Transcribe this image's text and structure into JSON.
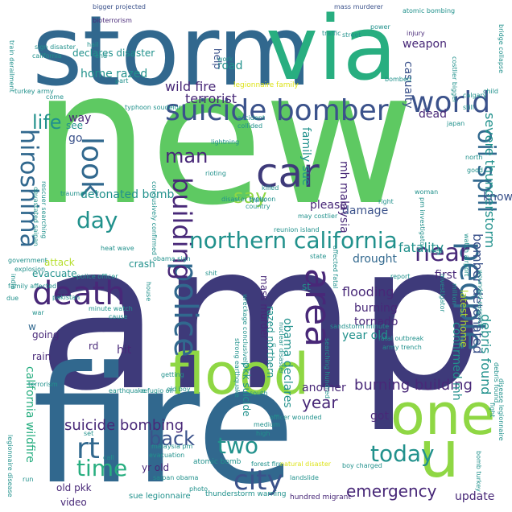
{
  "colors": {
    "dark_navy": "#3e3a7a",
    "indigo": "#443a83",
    "blue": "#31688e",
    "steel": "#3b528b",
    "teal": "#21918c",
    "teal_green": "#28ae80",
    "green": "#5ec962",
    "lime": "#8fd744",
    "yellow_green": "#b5de2b",
    "yellow": "#dde318",
    "purple": "#482878",
    "deep": "#440154"
  },
  "words": [
    {
      "text": "amp",
      "color": "dark_navy"
    },
    {
      "text": "new",
      "color": "green"
    },
    {
      "text": "fire",
      "color": "blue"
    },
    {
      "text": "storm",
      "color": "blue"
    },
    {
      "text": "via",
      "color": "teal_green"
    },
    {
      "text": "one",
      "color": "lime"
    },
    {
      "text": "u",
      "color": "lime"
    },
    {
      "text": "flood",
      "color": "lime"
    },
    {
      "text": "car",
      "color": "dark_navy"
    },
    {
      "text": "suicide bomber",
      "color": "steel"
    },
    {
      "text": "world",
      "color": "steel"
    },
    {
      "text": "life",
      "color": "teal"
    },
    {
      "text": "death",
      "color": "purple"
    },
    {
      "text": "area",
      "color": "purple"
    },
    {
      "text": "people",
      "color": "blue"
    },
    {
      "text": "police",
      "color": "blue"
    },
    {
      "text": "building",
      "color": "purple"
    },
    {
      "text": "look",
      "color": "blue"
    },
    {
      "text": "hiroshima",
      "color": "blue"
    },
    {
      "text": "northern california",
      "color": "teal"
    },
    {
      "text": "near",
      "color": "purple"
    },
    {
      "text": "day",
      "color": "teal"
    },
    {
      "text": "man",
      "color": "purple"
    },
    {
      "text": "say",
      "color": "lime"
    },
    {
      "text": "oil spill",
      "color": "blue"
    },
    {
      "text": "time",
      "color": "teal_green"
    },
    {
      "text": "rt",
      "color": "blue"
    },
    {
      "text": "back",
      "color": "steel"
    },
    {
      "text": "two",
      "color": "teal"
    },
    {
      "text": "city",
      "color": "steel"
    },
    {
      "text": "today",
      "color": "teal"
    },
    {
      "text": "emergency",
      "color": "purple"
    },
    {
      "text": "year",
      "color": "purple"
    },
    {
      "text": "suicide bombing",
      "color": "purple"
    },
    {
      "text": "burning building",
      "color": "purple"
    },
    {
      "text": "wild fire",
      "color": "purple"
    },
    {
      "text": "terrorist",
      "color": "purple"
    },
    {
      "text": "road",
      "color": "teal"
    },
    {
      "text": "home razed",
      "color": "teal"
    },
    {
      "text": "detonated bomb",
      "color": "teal"
    },
    {
      "text": "way",
      "color": "purple"
    },
    {
      "text": "go",
      "color": "steel"
    },
    {
      "text": "see",
      "color": "teal"
    },
    {
      "text": "declares disaster",
      "color": "teal"
    },
    {
      "text": "weapon",
      "color": "purple"
    },
    {
      "text": "casualty",
      "color": "steel"
    },
    {
      "text": "dead",
      "color": "purple"
    },
    {
      "text": "fatality",
      "color": "teal"
    },
    {
      "text": "damage",
      "color": "steel"
    },
    {
      "text": "drought",
      "color": "blue"
    },
    {
      "text": "flooding",
      "color": "purple"
    },
    {
      "text": "burning",
      "color": "purple"
    },
    {
      "text": "tornado",
      "color": "purple"
    },
    {
      "text": "year old",
      "color": "teal"
    },
    {
      "text": "obama declares",
      "color": "teal"
    },
    {
      "text": "another",
      "color": "purple"
    },
    {
      "text": "got",
      "color": "purple"
    },
    {
      "text": "first",
      "color": "purple"
    },
    {
      "text": "severe thunderstorm",
      "color": "teal"
    },
    {
      "text": "bomber detonated",
      "color": "steel"
    },
    {
      "text": "confirmed mh",
      "color": "teal"
    },
    {
      "text": "debris found",
      "color": "teal"
    },
    {
      "text": "update",
      "color": "purple"
    },
    {
      "text": "mh malaysia",
      "color": "purple"
    },
    {
      "text": "family sue",
      "color": "teal"
    },
    {
      "text": "please",
      "color": "purple"
    },
    {
      "text": "know",
      "color": "steel"
    },
    {
      "text": "attack",
      "color": "yellow_green"
    },
    {
      "text": "evacuate",
      "color": "teal"
    },
    {
      "text": "crash",
      "color": "teal"
    },
    {
      "text": "going",
      "color": "purple"
    },
    {
      "text": "rain",
      "color": "purple"
    },
    {
      "text": "california wildfire",
      "color": "teal_green"
    },
    {
      "text": "pkk suicide",
      "color": "teal"
    },
    {
      "text": "hit",
      "color": "purple"
    },
    {
      "text": "rd",
      "color": "purple"
    },
    {
      "text": "w",
      "color": "blue"
    },
    {
      "text": "yr old",
      "color": "purple"
    },
    {
      "text": "old pkk",
      "color": "purple"
    },
    {
      "text": "video",
      "color": "purple"
    },
    {
      "text": "razed northern",
      "color": "teal"
    },
    {
      "text": "mass murder",
      "color": "purple"
    },
    {
      "text": "st",
      "color": "teal"
    },
    {
      "text": "latest home",
      "color": "yellow_green"
    },
    {
      "text": "help",
      "color": "steel"
    },
    {
      "text": "legionnaire family",
      "color": "yellow"
    },
    {
      "text": "sue legionnaire",
      "color": "teal"
    },
    {
      "text": "atomic bomb",
      "color": "teal"
    },
    {
      "text": "thunderstorm warning",
      "color": "teal"
    },
    {
      "text": "hundred migrant",
      "color": "purple"
    },
    {
      "text": "boy charged",
      "color": "teal"
    },
    {
      "text": "bigger projected",
      "color": "steel"
    },
    {
      "text": "mass murderer",
      "color": "steel"
    },
    {
      "text": "atomic bombing",
      "color": "teal"
    },
    {
      "text": "bioterrorism",
      "color": "purple"
    },
    {
      "text": "sign disaster",
      "color": "teal"
    },
    {
      "text": "california",
      "color": "teal"
    },
    {
      "text": "hail",
      "color": "teal"
    },
    {
      "text": "end",
      "color": "teal"
    },
    {
      "text": "traffic",
      "color": "teal"
    },
    {
      "text": "power",
      "color": "teal"
    },
    {
      "text": "injury",
      "color": "purple"
    },
    {
      "text": "street",
      "color": "teal"
    },
    {
      "text": "bridge collapse",
      "color": "teal"
    },
    {
      "text": "train derailment",
      "color": "teal"
    },
    {
      "text": "turkey army",
      "color": "teal"
    },
    {
      "text": "typhoon soudelor",
      "color": "teal"
    },
    {
      "text": "accident",
      "color": "teal"
    },
    {
      "text": "collided",
      "color": "teal"
    },
    {
      "text": "lightning",
      "color": "teal"
    },
    {
      "text": "rioting",
      "color": "teal"
    },
    {
      "text": "killed",
      "color": "teal"
    },
    {
      "text": "disaster typhoon",
      "color": "teal"
    },
    {
      "text": "country",
      "color": "teal"
    },
    {
      "text": "reunion island",
      "color": "teal"
    },
    {
      "text": "may costlier",
      "color": "teal"
    },
    {
      "text": "devastated saipan",
      "color": "teal"
    },
    {
      "text": "rescuer searching",
      "color": "teal"
    },
    {
      "text": "trauma",
      "color": "teal"
    },
    {
      "text": "heat wave",
      "color": "teal"
    },
    {
      "text": "government",
      "color": "teal"
    },
    {
      "text": "explosion",
      "color": "teal"
    },
    {
      "text": "family affected",
      "color": "teal"
    },
    {
      "text": "pakistan",
      "color": "teal"
    },
    {
      "text": "police officer",
      "color": "teal"
    },
    {
      "text": "obama sign",
      "color": "teal"
    },
    {
      "text": "minute watch",
      "color": "teal"
    },
    {
      "text": "cause",
      "color": "teal"
    },
    {
      "text": "war",
      "color": "teal"
    },
    {
      "text": "terrorism",
      "color": "teal"
    },
    {
      "text": "earthquake",
      "color": "teal"
    },
    {
      "text": "getting",
      "color": "teal"
    },
    {
      "text": "refugio oil",
      "color": "teal"
    },
    {
      "text": "old boy",
      "color": "teal"
    },
    {
      "text": "malaysia pm",
      "color": "teal"
    },
    {
      "text": "evacuation",
      "color": "teal"
    },
    {
      "text": "saipan obama",
      "color": "teal"
    },
    {
      "text": "medium",
      "color": "teal"
    },
    {
      "text": "officer wounded",
      "color": "teal"
    },
    {
      "text": "high",
      "color": "teal"
    },
    {
      "text": "forest fire",
      "color": "teal"
    },
    {
      "text": "landslide",
      "color": "teal"
    },
    {
      "text": "natural disaster",
      "color": "yellow"
    },
    {
      "text": "photo",
      "color": "teal"
    },
    {
      "text": "call",
      "color": "teal"
    },
    {
      "text": "set",
      "color": "teal"
    },
    {
      "text": "run",
      "color": "teal"
    },
    {
      "text": "army trench",
      "color": "teal"
    },
    {
      "text": "fatal outbreak",
      "color": "teal"
    },
    {
      "text": "report",
      "color": "teal"
    },
    {
      "text": "need",
      "color": "teal"
    },
    {
      "text": "calgary",
      "color": "teal"
    },
    {
      "text": "still",
      "color": "teal"
    },
    {
      "text": "japan",
      "color": "teal"
    },
    {
      "text": "child",
      "color": "teal"
    },
    {
      "text": "bombed",
      "color": "teal"
    },
    {
      "text": "north",
      "color": "teal"
    },
    {
      "text": "good",
      "color": "teal"
    },
    {
      "text": "woman",
      "color": "teal"
    },
    {
      "text": "right",
      "color": "teal"
    },
    {
      "text": "nuclear disaster",
      "color": "teal"
    },
    {
      "text": "shit",
      "color": "teal"
    },
    {
      "text": "wreckage conclusively",
      "color": "teal"
    },
    {
      "text": "conclusively confirmed",
      "color": "teal"
    },
    {
      "text": "think",
      "color": "teal"
    },
    {
      "text": "work",
      "color": "teal"
    },
    {
      "text": "part",
      "color": "teal"
    },
    {
      "text": "come",
      "color": "teal"
    },
    {
      "text": "sandstorm minute",
      "color": "teal"
    },
    {
      "text": "wounded suspect",
      "color": "teal"
    },
    {
      "text": "fight",
      "color": "teal"
    },
    {
      "text": "investigator",
      "color": "teal"
    },
    {
      "text": "million",
      "color": "teal"
    },
    {
      "text": "watch airport",
      "color": "teal"
    },
    {
      "text": "affected fatal",
      "color": "teal"
    },
    {
      "text": "house",
      "color": "teal"
    },
    {
      "text": "due",
      "color": "teal"
    },
    {
      "text": "india",
      "color": "teal"
    },
    {
      "text": "debris found",
      "color": "teal"
    },
    {
      "text": "legionnaire disease",
      "color": "teal"
    },
    {
      "text": "bomb turkey",
      "color": "teal"
    },
    {
      "text": "disease legionnaire",
      "color": "teal"
    },
    {
      "text": "searching hundred",
      "color": "teal"
    },
    {
      "text": "state",
      "color": "teal"
    },
    {
      "text": "costlier bigger",
      "color": "teal"
    },
    {
      "text": "pm investigator",
      "color": "teal"
    },
    {
      "text": "strong earthquake",
      "color": "teal"
    },
    {
      "text": "south",
      "color": "teal"
    },
    {
      "text": "n",
      "color": "teal"
    }
  ]
}
